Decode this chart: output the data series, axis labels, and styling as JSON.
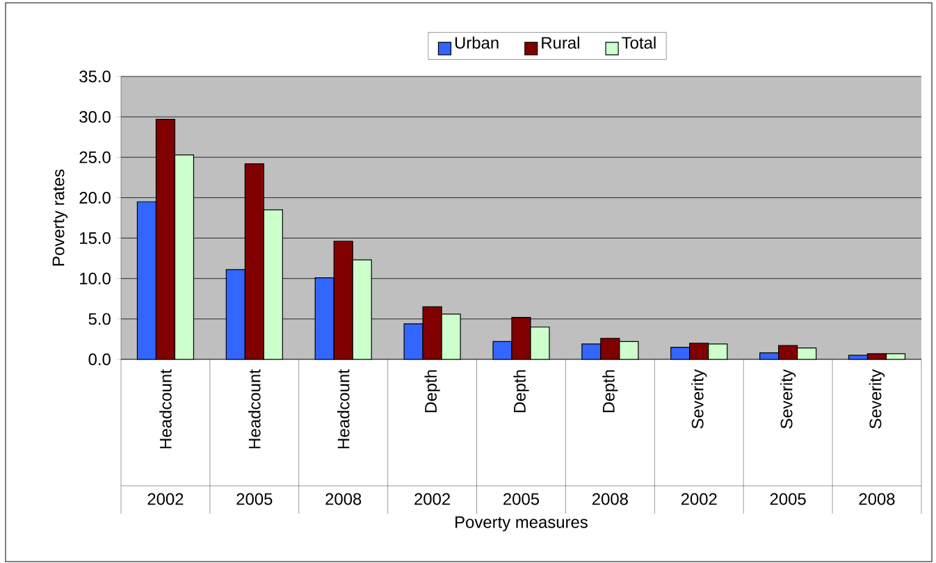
{
  "chart_data": {
    "type": "bar",
    "xlabel": "Poverty measures",
    "ylabel": "Poverty rates",
    "categories": [
      "Headcount",
      "Headcount",
      "Headcount",
      "Depth",
      "Depth",
      "Depth",
      "Severity",
      "Severity",
      "Severity"
    ],
    "annotations": [
      "2002",
      "2005",
      "2008",
      "2002",
      "2005",
      "2008",
      "2002",
      "2005",
      "2008"
    ],
    "series": [
      {
        "name": "Urban",
        "color": "#3366ff",
        "values": [
          19.5,
          11.1,
          10.1,
          4.4,
          2.2,
          1.9,
          1.5,
          0.8,
          0.5
        ]
      },
      {
        "name": "Rural",
        "color": "#800000",
        "values": [
          29.7,
          24.2,
          14.6,
          6.5,
          5.2,
          2.6,
          2.0,
          1.7,
          0.7
        ]
      },
      {
        "name": "Total",
        "color": "#ccffcc",
        "values": [
          25.3,
          18.5,
          12.3,
          5.6,
          4.0,
          2.2,
          1.9,
          1.4,
          0.7
        ]
      }
    ],
    "ylim": [
      0,
      35
    ],
    "yticks": [
      {
        "value": 0,
        "label": "0.0"
      },
      {
        "value": 5,
        "label": "5.0"
      },
      {
        "value": 10,
        "label": "10.0"
      },
      {
        "value": 15,
        "label": "15.0"
      },
      {
        "value": 20,
        "label": "20.0"
      },
      {
        "value": 25,
        "label": "25.0"
      },
      {
        "value": 30,
        "label": "30.0"
      },
      {
        "value": 35,
        "label": "35.0"
      }
    ],
    "grid": "y",
    "legend": "top"
  }
}
